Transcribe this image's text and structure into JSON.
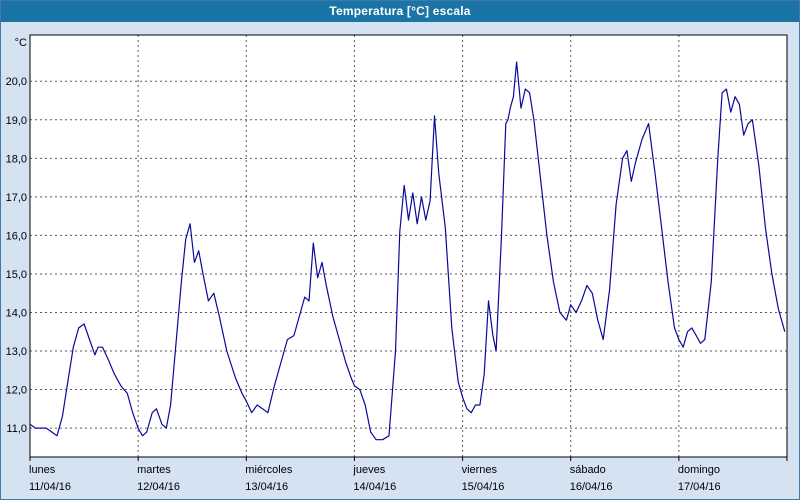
{
  "window": {
    "title": "Temperatura [°C] escala"
  },
  "colors": {
    "title_bar": "#1b74a6",
    "title_text": "#ffffff",
    "background": "#d4e2f1",
    "plot_bg": "#ffffff",
    "line": "#0a0a99",
    "grid": "#5a5a5a",
    "plot_border": "#000000",
    "axis_text": "#000000"
  },
  "chart_data": {
    "type": "line",
    "title": "Temperatura [°C] escala",
    "unit_label": "°C",
    "xlabel": "",
    "ylabel": "°C",
    "ylim": [
      10.25,
      21.2
    ],
    "yticks": [
      11,
      12,
      13,
      14,
      15,
      16,
      17,
      18,
      19,
      20
    ],
    "ytick_format": "comma-decimal",
    "grid": "dashed",
    "legend_position": "none",
    "days": [
      {
        "name": "lunes",
        "date": "11/04/16"
      },
      {
        "name": "martes",
        "date": "12/04/16"
      },
      {
        "name": "miércoles",
        "date": "13/04/16"
      },
      {
        "name": "jueves",
        "date": "14/04/16"
      },
      {
        "name": "viernes",
        "date": "15/04/16"
      },
      {
        "name": "sábado",
        "date": "16/04/16"
      },
      {
        "name": "domingo",
        "date": "17/04/16"
      }
    ],
    "series": [
      {
        "name": "Temperatura",
        "points": [
          [
            0.0,
            11.1
          ],
          [
            0.05,
            11.0
          ],
          [
            0.1,
            11.0
          ],
          [
            0.15,
            11.0
          ],
          [
            0.2,
            10.9
          ],
          [
            0.25,
            10.8
          ],
          [
            0.3,
            11.3
          ],
          [
            0.35,
            12.2
          ],
          [
            0.4,
            13.1
          ],
          [
            0.45,
            13.6
          ],
          [
            0.5,
            13.7
          ],
          [
            0.55,
            13.3
          ],
          [
            0.6,
            12.9
          ],
          [
            0.63,
            13.1
          ],
          [
            0.67,
            13.1
          ],
          [
            0.72,
            12.8
          ],
          [
            0.78,
            12.4
          ],
          [
            0.84,
            12.1
          ],
          [
            0.9,
            11.9
          ],
          [
            0.95,
            11.4
          ],
          [
            1.0,
            11.0
          ],
          [
            1.04,
            10.8
          ],
          [
            1.08,
            10.9
          ],
          [
            1.13,
            11.4
          ],
          [
            1.17,
            11.5
          ],
          [
            1.22,
            11.1
          ],
          [
            1.26,
            11.0
          ],
          [
            1.3,
            11.6
          ],
          [
            1.35,
            13.2
          ],
          [
            1.4,
            14.8
          ],
          [
            1.44,
            15.9
          ],
          [
            1.48,
            16.3
          ],
          [
            1.52,
            15.3
          ],
          [
            1.56,
            15.6
          ],
          [
            1.6,
            15.0
          ],
          [
            1.65,
            14.3
          ],
          [
            1.7,
            14.5
          ],
          [
            1.75,
            13.9
          ],
          [
            1.82,
            13.0
          ],
          [
            1.9,
            12.3
          ],
          [
            1.96,
            11.9
          ],
          [
            2.0,
            11.7
          ],
          [
            2.05,
            11.4
          ],
          [
            2.1,
            11.6
          ],
          [
            2.15,
            11.5
          ],
          [
            2.2,
            11.4
          ],
          [
            2.26,
            12.1
          ],
          [
            2.32,
            12.7
          ],
          [
            2.38,
            13.3
          ],
          [
            2.44,
            13.4
          ],
          [
            2.5,
            14.0
          ],
          [
            2.54,
            14.4
          ],
          [
            2.58,
            14.3
          ],
          [
            2.62,
            15.8
          ],
          [
            2.66,
            14.9
          ],
          [
            2.7,
            15.3
          ],
          [
            2.74,
            14.7
          ],
          [
            2.8,
            13.9
          ],
          [
            2.86,
            13.3
          ],
          [
            2.92,
            12.7
          ],
          [
            2.97,
            12.3
          ],
          [
            3.0,
            12.1
          ],
          [
            3.05,
            12.0
          ],
          [
            3.1,
            11.6
          ],
          [
            3.15,
            10.9
          ],
          [
            3.2,
            10.7
          ],
          [
            3.26,
            10.7
          ],
          [
            3.32,
            10.8
          ],
          [
            3.38,
            13.0
          ],
          [
            3.42,
            16.1
          ],
          [
            3.46,
            17.3
          ],
          [
            3.5,
            16.4
          ],
          [
            3.54,
            17.1
          ],
          [
            3.58,
            16.3
          ],
          [
            3.62,
            17.0
          ],
          [
            3.66,
            16.4
          ],
          [
            3.7,
            16.9
          ],
          [
            3.74,
            19.1
          ],
          [
            3.78,
            17.6
          ],
          [
            3.84,
            16.2
          ],
          [
            3.9,
            13.6
          ],
          [
            3.96,
            12.2
          ],
          [
            4.0,
            11.8
          ],
          [
            4.04,
            11.5
          ],
          [
            4.08,
            11.4
          ],
          [
            4.12,
            11.6
          ],
          [
            4.16,
            11.6
          ],
          [
            4.2,
            12.4
          ],
          [
            4.24,
            14.3
          ],
          [
            4.28,
            13.4
          ],
          [
            4.31,
            13.0
          ],
          [
            4.36,
            16.0
          ],
          [
            4.4,
            18.9
          ],
          [
            4.42,
            19.0
          ],
          [
            4.44,
            19.3
          ],
          [
            4.47,
            19.6
          ],
          [
            4.5,
            20.5
          ],
          [
            4.54,
            19.3
          ],
          [
            4.58,
            19.8
          ],
          [
            4.62,
            19.7
          ],
          [
            4.66,
            19.0
          ],
          [
            4.72,
            17.5
          ],
          [
            4.78,
            16.0
          ],
          [
            4.84,
            14.8
          ],
          [
            4.9,
            14.0
          ],
          [
            4.96,
            13.8
          ],
          [
            5.0,
            14.2
          ],
          [
            5.05,
            14.0
          ],
          [
            5.1,
            14.3
          ],
          [
            5.15,
            14.7
          ],
          [
            5.2,
            14.5
          ],
          [
            5.25,
            13.8
          ],
          [
            5.3,
            13.3
          ],
          [
            5.36,
            14.6
          ],
          [
            5.42,
            16.8
          ],
          [
            5.48,
            18.0
          ],
          [
            5.52,
            18.2
          ],
          [
            5.56,
            17.4
          ],
          [
            5.6,
            17.9
          ],
          [
            5.66,
            18.5
          ],
          [
            5.72,
            18.9
          ],
          [
            5.78,
            17.6
          ],
          [
            5.84,
            16.2
          ],
          [
            5.9,
            14.8
          ],
          [
            5.96,
            13.6
          ],
          [
            6.0,
            13.3
          ],
          [
            6.04,
            13.1
          ],
          [
            6.08,
            13.5
          ],
          [
            6.12,
            13.6
          ],
          [
            6.16,
            13.4
          ],
          [
            6.2,
            13.2
          ],
          [
            6.24,
            13.3
          ],
          [
            6.3,
            14.8
          ],
          [
            6.36,
            18.0
          ],
          [
            6.4,
            19.7
          ],
          [
            6.44,
            19.8
          ],
          [
            6.48,
            19.2
          ],
          [
            6.52,
            19.6
          ],
          [
            6.56,
            19.4
          ],
          [
            6.6,
            18.6
          ],
          [
            6.64,
            18.9
          ],
          [
            6.68,
            19.0
          ],
          [
            6.74,
            17.8
          ],
          [
            6.8,
            16.2
          ],
          [
            6.86,
            15.0
          ],
          [
            6.92,
            14.1
          ],
          [
            6.98,
            13.5
          ]
        ]
      }
    ]
  }
}
